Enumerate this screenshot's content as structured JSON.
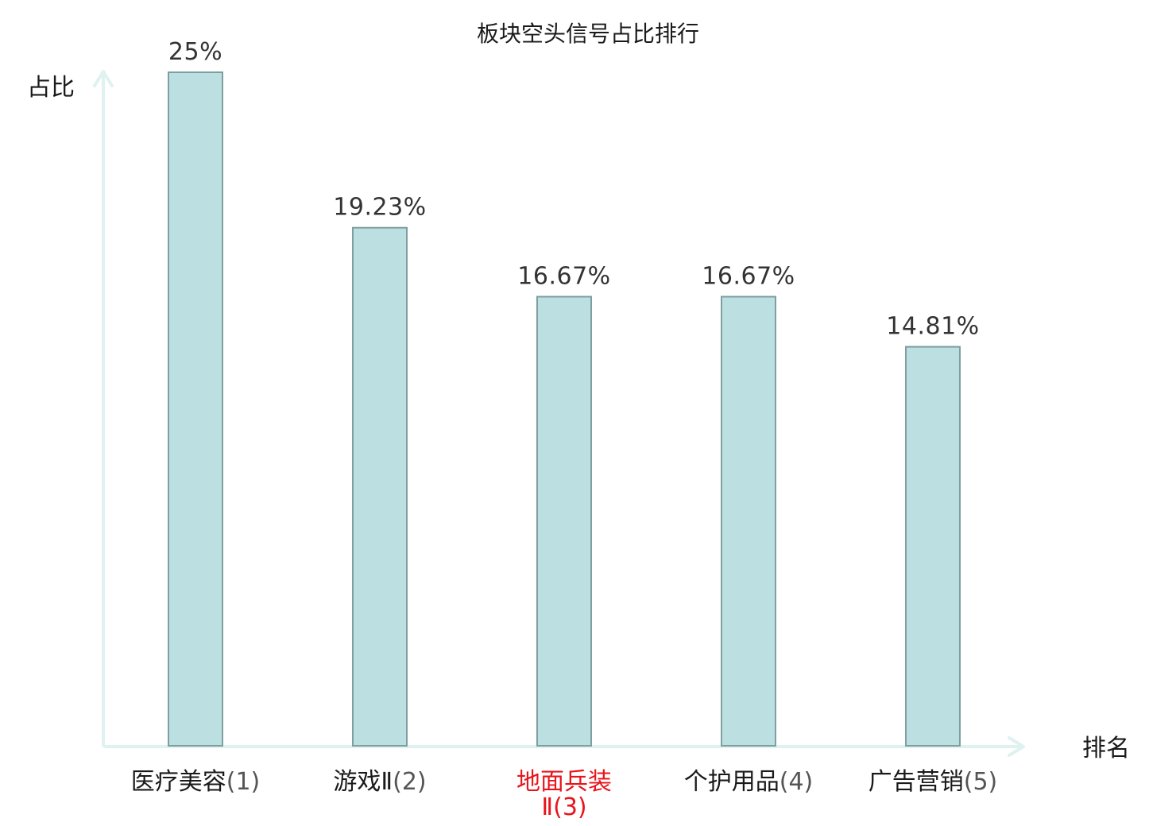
{
  "chart_data": {
    "type": "bar",
    "title": "板块空头信号占比排行",
    "ylabel": "占比",
    "xlabel": "排名",
    "categories": [
      "医疗美容",
      "游戏Ⅱ",
      "地面兵装Ⅱ",
      "个护用品",
      "广告营销"
    ],
    "ranks": [
      "(1)",
      "(2)",
      "(3)",
      "(4)",
      "(5)"
    ],
    "values": [
      25,
      19.23,
      16.67,
      16.67,
      14.81
    ],
    "value_labels": [
      "25%",
      "19.23%",
      "16.67%",
      "16.67%",
      "14.81%"
    ],
    "highlight_index": 2,
    "grid": false,
    "colors": {
      "bar_fill": "#bce0e1",
      "bar_stroke": "#7f9ea0",
      "axis": "#dff2f0",
      "highlight_text": "#e8141b",
      "text": "#1a1a1a"
    }
  }
}
